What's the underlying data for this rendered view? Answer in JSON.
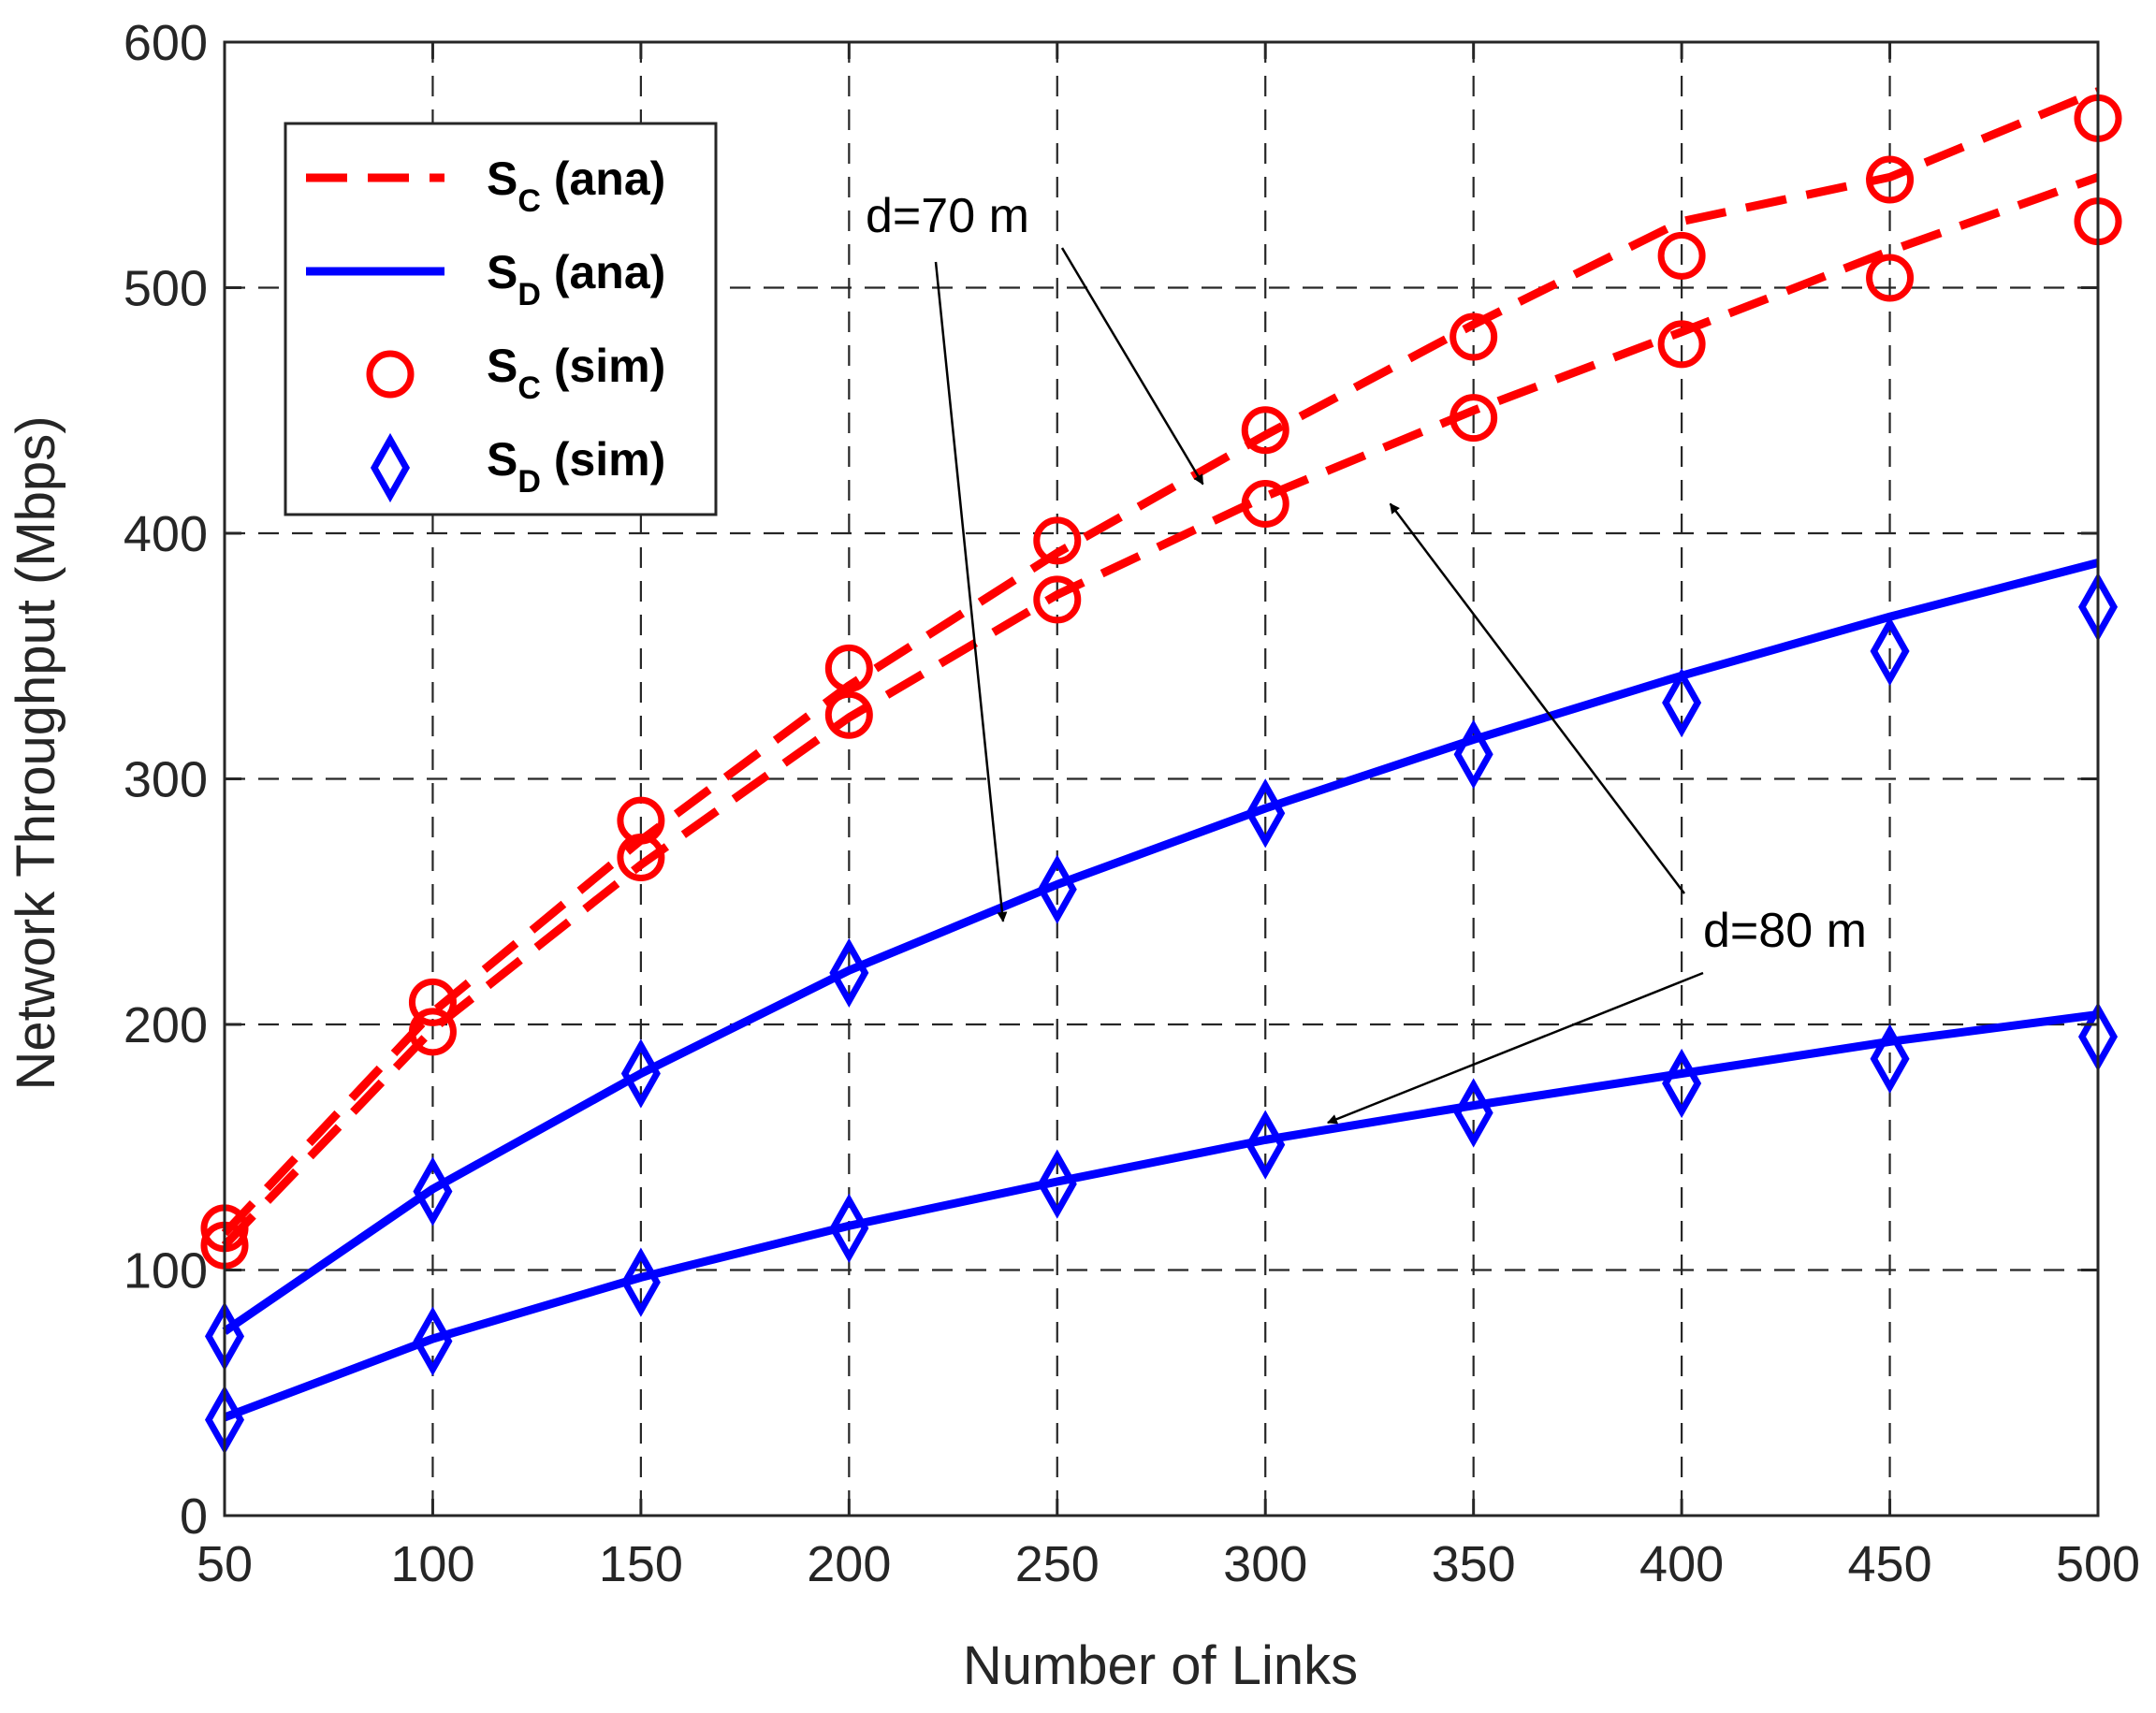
{
  "chart_data": {
    "type": "line",
    "title": "",
    "xlabel": "Number of Links",
    "ylabel": "Network Throughput (Mbps)",
    "xlim": [
      50,
      500
    ],
    "ylim": [
      0,
      600
    ],
    "xticks": [
      50,
      100,
      150,
      200,
      250,
      300,
      350,
      400,
      450,
      500
    ],
    "yticks": [
      0,
      100,
      200,
      300,
      400,
      500,
      600
    ],
    "grid": true,
    "legend_position": "top-left",
    "x": [
      50,
      100,
      150,
      200,
      250,
      300,
      350,
      400,
      450,
      500
    ],
    "series": [
      {
        "name": "S_C (ana)",
        "legend_main": "S",
        "legend_sub": "C",
        "legend_suffix": " (ana)",
        "style": "dashed",
        "color": "#ff0000",
        "group": "d=70 m",
        "values": [
          115,
          205,
          275,
          338,
          392,
          440,
          485,
          527,
          545,
          580
        ]
      },
      {
        "name": "S_C (ana)",
        "legend_main": "S",
        "legend_sub": "C",
        "legend_suffix": " (ana)",
        "style": "dashed",
        "color": "#ff0000",
        "group": "d=80 m",
        "values": [
          110,
          198,
          265,
          325,
          375,
          415,
          450,
          482,
          515,
          545
        ]
      },
      {
        "name": "S_D (ana)",
        "legend_main": "S",
        "legend_sub": "D",
        "legend_suffix": " (ana)",
        "style": "solid",
        "color": "#0000ff",
        "group": "d=70 m",
        "values": [
          75,
          133,
          180,
          222,
          257,
          288,
          316,
          342,
          366,
          388
        ]
      },
      {
        "name": "S_D (ana)",
        "legend_main": "S",
        "legend_sub": "D",
        "legend_suffix": " (ana)",
        "style": "solid",
        "color": "#0000ff",
        "group": "d=80 m",
        "values": [
          40,
          72,
          97,
          118,
          136,
          153,
          167,
          180,
          193,
          204
        ]
      },
      {
        "name": "S_C (sim)",
        "legend_main": "S",
        "legend_sub": "C",
        "legend_suffix": " (sim)",
        "style": "marker-circle",
        "color": "#ff0000",
        "group": "d=70 m",
        "values": [
          117,
          209,
          283,
          345,
          397,
          442,
          480,
          513,
          544,
          569
        ]
      },
      {
        "name": "S_C (sim)",
        "legend_main": "S",
        "legend_sub": "C",
        "legend_suffix": " (sim)",
        "style": "marker-circle",
        "color": "#ff0000",
        "group": "d=80 m",
        "values": [
          110,
          197,
          268,
          326,
          373,
          412,
          447,
          477,
          504,
          527
        ]
      },
      {
        "name": "S_D (sim)",
        "legend_main": "S",
        "legend_sub": "D",
        "legend_suffix": " (sim)",
        "style": "marker-diamond",
        "color": "#0000ff",
        "group": "d=70 m",
        "values": [
          73,
          132,
          180,
          221,
          255,
          286,
          310,
          331,
          352,
          370
        ]
      },
      {
        "name": "S_D (sim)",
        "legend_main": "S",
        "legend_sub": "D",
        "legend_suffix": " (sim)",
        "style": "marker-diamond",
        "color": "#0000ff",
        "group": "d=80 m",
        "values": [
          39,
          71,
          95,
          117,
          135,
          151,
          164,
          176,
          186,
          195
        ]
      }
    ],
    "annotations": [
      {
        "text": "d=70 m",
        "arrows_to": [
          [
            237,
            242
          ],
          [
            285,
            420
          ]
        ]
      },
      {
        "text": "d=80 m",
        "arrows_to": [
          [
            330,
            412
          ],
          [
            315,
            160
          ]
        ]
      }
    ]
  }
}
